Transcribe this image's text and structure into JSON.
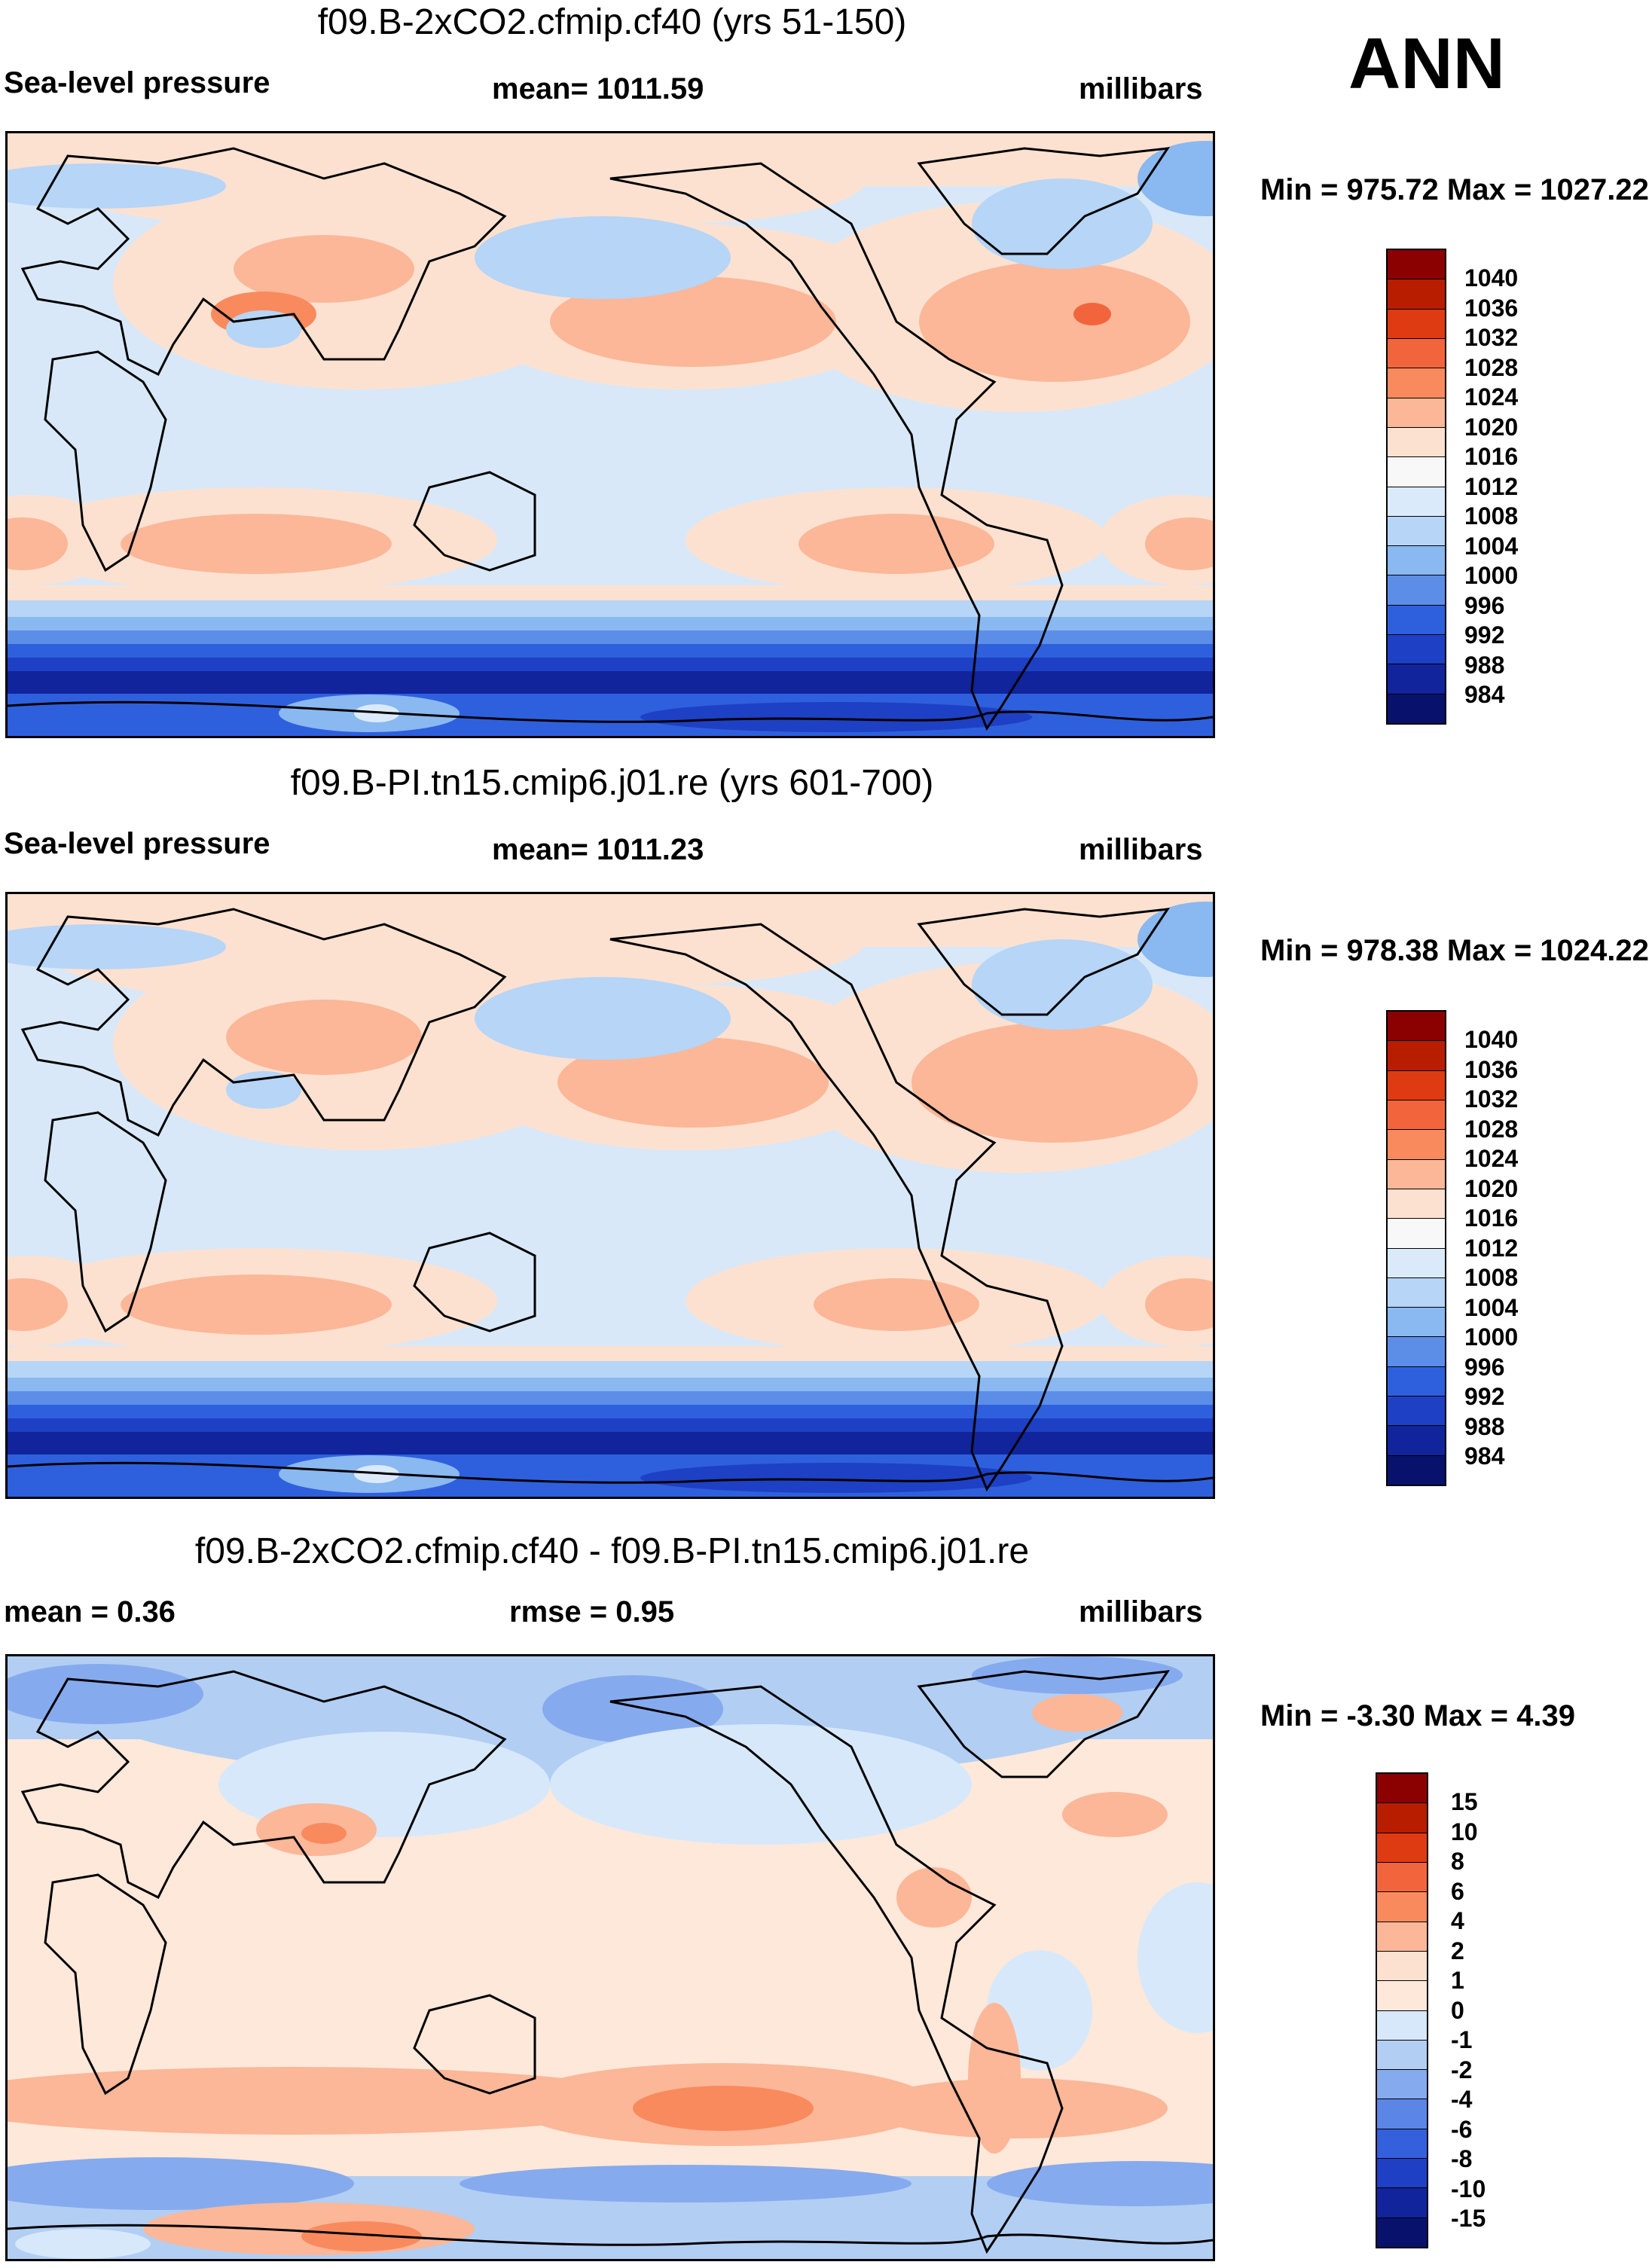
{
  "season_label": "ANN",
  "palettes": {
    "abs": [
      "#8b0000",
      "#b81d00",
      "#de3b12",
      "#f2653c",
      "#f98a5e",
      "#fbb798",
      "#fde1d0",
      "#f8f8f8",
      "#dbeafb",
      "#b6d5f7",
      "#8ab8f0",
      "#5c8ee8",
      "#2e60de",
      "#1e40c4",
      "#11249c",
      "#08126c"
    ],
    "diff": [
      "#8b0000",
      "#b81d00",
      "#de3b12",
      "#f2653c",
      "#f98a5e",
      "#fbb798",
      "#fde1d0",
      "#fde8da",
      "#d7e8fb",
      "#b2cef3",
      "#86aaee",
      "#5c86e6",
      "#3560dc",
      "#1f3fc4",
      "#11249c",
      "#08126c"
    ]
  },
  "panels": [
    {
      "id": "model",
      "title": "f09.B-2xCO2.cfmip.cf40 (yrs 51-150)",
      "left_label": "Sea-level pressure",
      "center_label": "mean= 1011.59",
      "right_label": "millibars",
      "minmax": "Min = 975.72 Max = 1027.22",
      "colorbar_ticks": [
        "1040",
        "1036",
        "1032",
        "1028",
        "1024",
        "1020",
        "1016",
        "1012",
        "1008",
        "1004",
        "1000",
        "996",
        "992",
        "988",
        "984"
      ],
      "palette": "abs"
    },
    {
      "id": "control",
      "title": "f09.B-PI.tn15.cmip6.j01.re (yrs 601-700)",
      "left_label": "Sea-level pressure",
      "center_label": "mean= 1011.23",
      "right_label": "millibars",
      "minmax": "Min = 978.38 Max = 1024.22",
      "colorbar_ticks": [
        "1040",
        "1036",
        "1032",
        "1028",
        "1024",
        "1020",
        "1016",
        "1012",
        "1008",
        "1004",
        "1000",
        "996",
        "992",
        "988",
        "984"
      ],
      "palette": "abs"
    },
    {
      "id": "difference",
      "title": "f09.B-2xCO2.cfmip.cf40 - f09.B-PI.tn15.cmip6.j01.re",
      "left_label": "mean =   0.36",
      "center_label": "rmse =   0.95",
      "right_label": "millibars",
      "minmax": "Min =  -3.30 Max =   4.39",
      "colorbar_ticks": [
        "15",
        "10",
        "8",
        "6",
        "4",
        "2",
        "1",
        "0",
        "-1",
        "-2",
        "-4",
        "-6",
        "-8",
        "-10",
        "-15"
      ],
      "palette": "diff"
    }
  ]
}
